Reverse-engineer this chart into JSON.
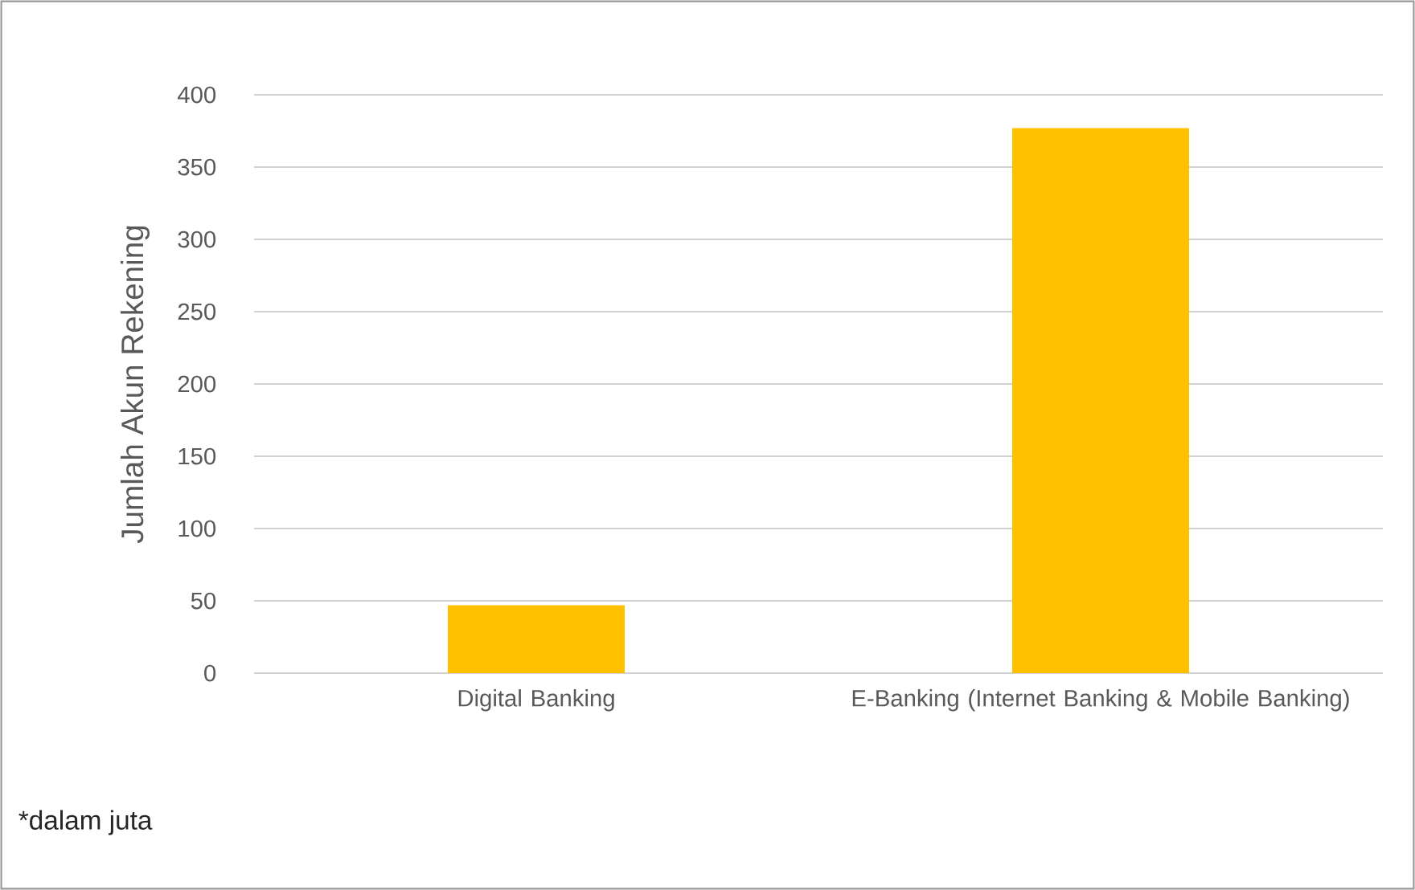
{
  "chart_data": {
    "type": "bar",
    "ylabel": "Jumlah Akun Rekening",
    "categories": [
      "Digital Banking",
      "E-Banking (Internet Banking & Mobile Banking)"
    ],
    "values": [
      47,
      377
    ],
    "color": "#ffc000",
    "ylim": [
      0,
      400
    ],
    "yticks": [
      0,
      50,
      100,
      150,
      200,
      250,
      300,
      350,
      400
    ],
    "grid": "y",
    "annotations": [
      "*dalam juta"
    ]
  }
}
